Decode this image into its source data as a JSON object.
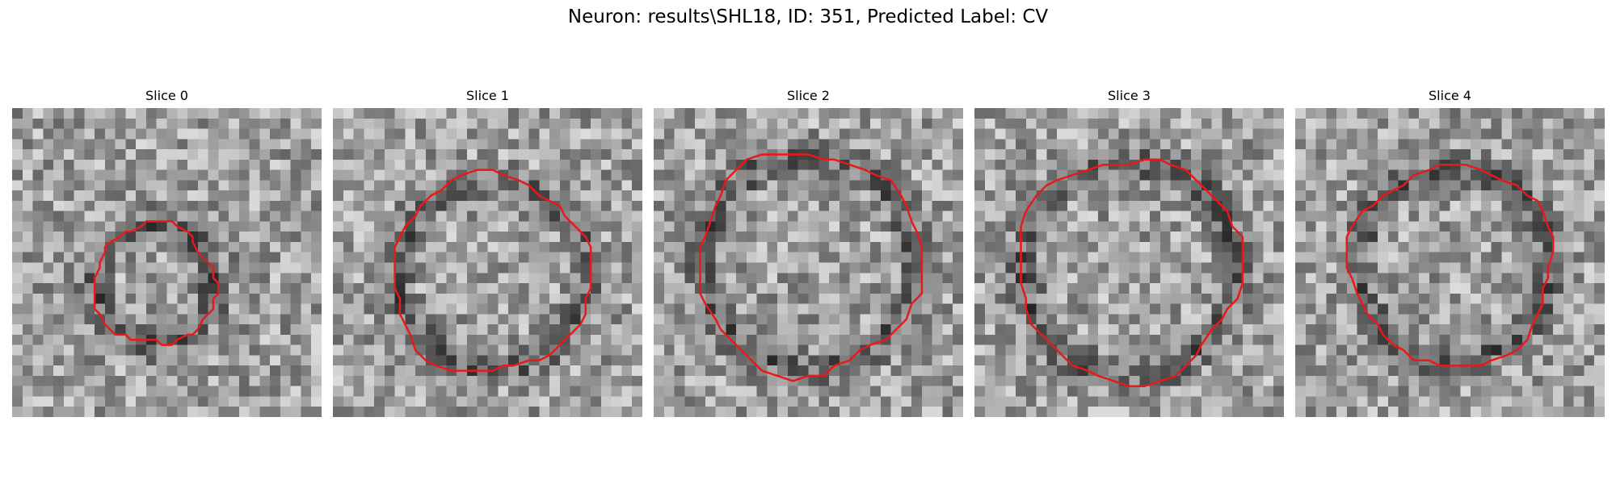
{
  "figure": {
    "suptitle": "Neuron: results\\SHL18, ID: 351, Predicted Label: CV"
  },
  "contour_color": "#e8191a",
  "colormap": "grayscale",
  "grid_size": 30,
  "panels": [
    {
      "title": "Slice 0",
      "contour_radius": 0.39,
      "center": [
        0.46,
        0.57
      ],
      "dark_ring": 0.55,
      "seed": 11
    },
    {
      "title": "Slice 1",
      "contour_radius": 0.64,
      "center": [
        0.51,
        0.54
      ],
      "dark_ring": 0.75,
      "seed": 23
    },
    {
      "title": "Slice 2",
      "contour_radius": 0.72,
      "center": [
        0.5,
        0.5
      ],
      "dark_ring": 0.85,
      "seed": 37
    },
    {
      "title": "Slice 3",
      "contour_radius": 0.72,
      "center": [
        0.5,
        0.52
      ],
      "dark_ring": 0.85,
      "seed": 41
    },
    {
      "title": "Slice 4",
      "contour_radius": 0.65,
      "center": [
        0.51,
        0.51
      ],
      "dark_ring": 0.78,
      "seed": 53
    }
  ]
}
